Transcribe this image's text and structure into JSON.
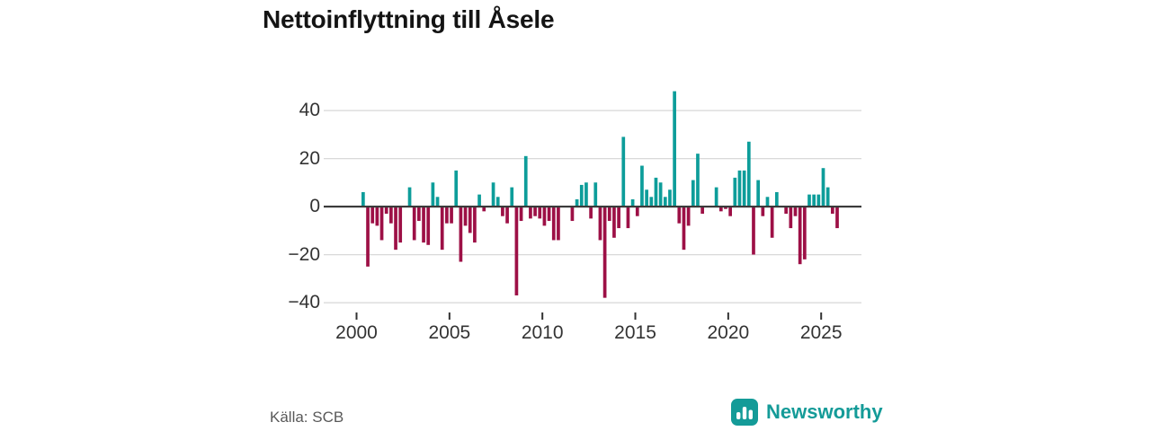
{
  "title": "Nettoinflyttning till Åsele",
  "source": "Källa: SCB",
  "logo": {
    "text": "Newsworthy",
    "color": "#149B98"
  },
  "chart_data": {
    "type": "bar",
    "title": "Nettoinflyttning till Åsele",
    "xlabel": "",
    "ylabel": "",
    "x_unit": "quarter",
    "ylim": [
      -45,
      52
    ],
    "grid": true,
    "y_ticks": [
      40,
      20,
      0,
      -20,
      -40
    ],
    "y_tick_labels": [
      "40",
      "20",
      "0",
      "−20",
      "−40"
    ],
    "x_ticks": [
      2000,
      2005,
      2010,
      2015,
      2020,
      2025
    ],
    "x_tick_labels": [
      "2000",
      "2005",
      "2010",
      "2015",
      "2020",
      "2025"
    ],
    "colors": {
      "positive": "#0D9D9A",
      "negative": "#9D1046",
      "axis": "#3b3b3b",
      "grid": "#d9d9d9"
    },
    "series": [
      {
        "year": 2000,
        "values": [
          0,
          6,
          -25,
          -7
        ]
      },
      {
        "year": 2001,
        "values": [
          -8,
          -14,
          -3,
          -7
        ]
      },
      {
        "year": 2002,
        "values": [
          -18,
          -15,
          0,
          8
        ]
      },
      {
        "year": 2003,
        "values": [
          -14,
          -6,
          -15,
          -16
        ]
      },
      {
        "year": 2004,
        "values": [
          10,
          4,
          -18,
          -7
        ]
      },
      {
        "year": 2005,
        "values": [
          -7,
          15,
          -23,
          -8
        ]
      },
      {
        "year": 2006,
        "values": [
          -11,
          -15,
          5,
          -2
        ]
      },
      {
        "year": 2007,
        "values": [
          0,
          10,
          4,
          -4
        ]
      },
      {
        "year": 2008,
        "values": [
          -7,
          8,
          -37,
          -6
        ]
      },
      {
        "year": 2009,
        "values": [
          21,
          -5,
          -4,
          -5
        ]
      },
      {
        "year": 2010,
        "values": [
          -8,
          -6,
          -14,
          -14
        ]
      },
      {
        "year": 2011,
        "values": [
          0,
          0,
          -6,
          3
        ]
      },
      {
        "year": 2012,
        "values": [
          9,
          10,
          -5,
          10
        ]
      },
      {
        "year": 2013,
        "values": [
          -14,
          -38,
          -6,
          -13
        ]
      },
      {
        "year": 2014,
        "values": [
          -9,
          29,
          -9,
          3
        ]
      },
      {
        "year": 2015,
        "values": [
          -4,
          17,
          7,
          4
        ]
      },
      {
        "year": 2016,
        "values": [
          12,
          10,
          4,
          7
        ]
      },
      {
        "year": 2017,
        "values": [
          48,
          -7,
          -18,
          -8
        ]
      },
      {
        "year": 2018,
        "values": [
          11,
          22,
          -3,
          0
        ]
      },
      {
        "year": 2019,
        "values": [
          0,
          8,
          -2,
          -1
        ]
      },
      {
        "year": 2020,
        "values": [
          -4,
          12,
          15,
          15
        ]
      },
      {
        "year": 2021,
        "values": [
          27,
          -20,
          11,
          -4
        ]
      },
      {
        "year": 2022,
        "values": [
          4,
          -13,
          6,
          0
        ]
      },
      {
        "year": 2023,
        "values": [
          -3,
          -9,
          -4,
          -24
        ]
      },
      {
        "year": 2024,
        "values": [
          -22,
          5,
          5,
          5
        ]
      },
      {
        "year": 2025,
        "values": [
          16,
          8,
          -3,
          -9
        ]
      }
    ]
  }
}
